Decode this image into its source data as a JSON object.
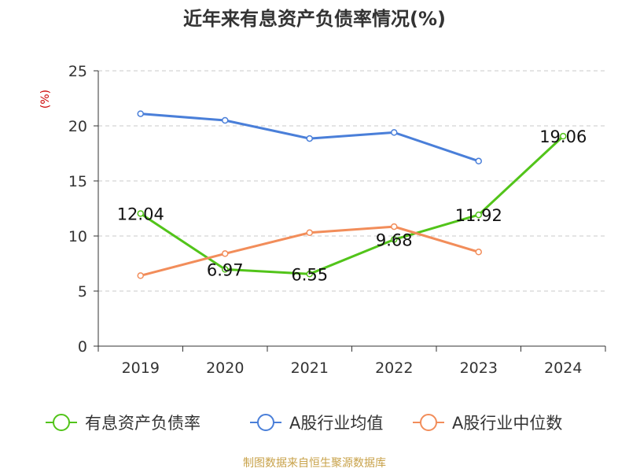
{
  "chart_data": {
    "type": "line",
    "title": "近年来有息资产负债率情况(%)",
    "ylabel": "(%)",
    "categories": [
      "2019",
      "2020",
      "2021",
      "2022",
      "2023",
      "2024"
    ],
    "ylim": [
      0,
      25
    ],
    "yticks": [
      "0",
      "5",
      "10",
      "15",
      "20",
      "25"
    ],
    "grid": true,
    "legend_position": "bottom",
    "series": [
      {
        "name": "有息资产负债率",
        "color": "#52c41a",
        "values": [
          12.04,
          6.97,
          6.55,
          9.68,
          11.92,
          19.06
        ],
        "labels": [
          "12.04",
          "6.97",
          "6.55",
          "9.68",
          "11.92",
          "19.06"
        ]
      },
      {
        "name": "A股行业均值",
        "color": "#4a7fd9",
        "values": [
          21.1,
          20.5,
          18.85,
          19.4,
          16.8,
          null
        ]
      },
      {
        "name": "A股行业中位数",
        "color": "#f28d5a",
        "values": [
          6.4,
          8.4,
          10.3,
          10.85,
          8.55,
          null
        ]
      }
    ]
  },
  "source": "制图数据来自恒生聚源数据库",
  "colors": {
    "title": "#333333",
    "axis": "#333333",
    "grid": "#c8c8c8",
    "ylabel": "#cc0000",
    "source": "#c8a24a"
  }
}
